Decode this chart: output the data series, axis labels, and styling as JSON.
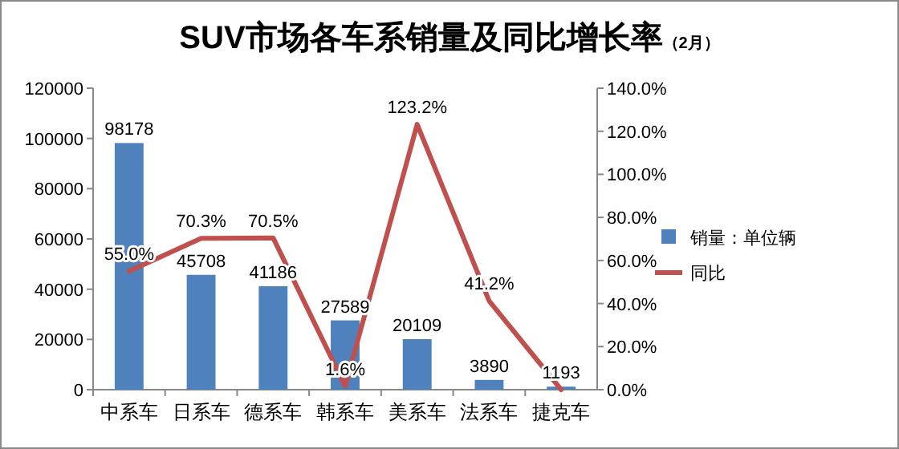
{
  "chart_data": {
    "type": "bar",
    "title": "SUV市场各车系销量及同比增长率",
    "subtitle": "（2月）",
    "categories": [
      "中系车",
      "日系车",
      "德系车",
      "韩系车",
      "美系车",
      "法系车",
      "捷克车"
    ],
    "series": [
      {
        "name": "销量：单位辆",
        "color": "#4f81bd",
        "values": [
          98178,
          45708,
          41186,
          27589,
          20109,
          3890,
          1193
        ],
        "value_labels": [
          "98178",
          "45708",
          "41186",
          "27589",
          "20109",
          "3890",
          "1193"
        ]
      },
      {
        "name": "同比",
        "type": "line",
        "axis": "y2",
        "color": "#c0504d",
        "values": [
          55.0,
          70.3,
          70.5,
          1.6,
          123.2,
          41.2,
          0
        ],
        "value_labels": [
          "55.0%",
          "70.3%",
          "70.5%",
          "1.6%",
          "123.2%",
          "41.2%",
          null
        ]
      }
    ],
    "ylim": [
      0,
      120000
    ],
    "yticks": [
      0,
      20000,
      40000,
      60000,
      80000,
      100000,
      120000
    ],
    "y2lim": [
      0,
      140
    ],
    "y2ticks": [
      {
        "value": 0,
        "label": "0.0%"
      },
      {
        "value": 20,
        "label": "20.0%"
      },
      {
        "value": 40,
        "label": "40.0%"
      },
      {
        "value": 60,
        "label": "60.0%"
      },
      {
        "value": 80,
        "label": "80.0%"
      },
      {
        "value": 100,
        "label": "100.0%"
      },
      {
        "value": 120,
        "label": "120.0%"
      },
      {
        "value": 140,
        "label": "140.0%"
      }
    ],
    "legend": "right",
    "marker": "none",
    "line_style": "solid"
  }
}
